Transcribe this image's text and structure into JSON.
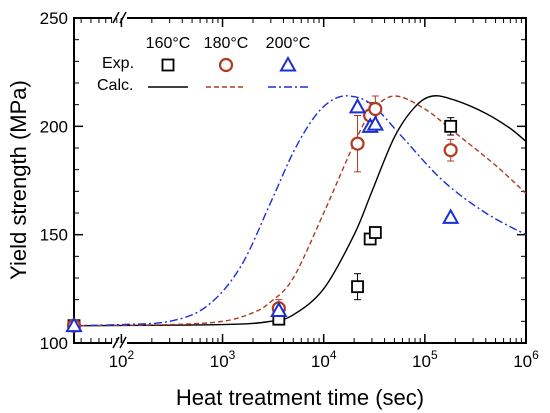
{
  "chart_data": {
    "type": "scatter",
    "xlabel": "Heat treatment time (sec)",
    "ylabel": "Yield strength (MPa)",
    "xscale": "log",
    "xlim": [
      34,
      1000000
    ],
    "ylim": [
      100,
      250
    ],
    "x_axis_break": true,
    "x_ticks": [
      {
        "value": 100,
        "base": "10",
        "exp": "2"
      },
      {
        "value": 1000,
        "base": "10",
        "exp": "3"
      },
      {
        "value": 10000,
        "base": "10",
        "exp": "4"
      },
      {
        "value": 100000,
        "base": "10",
        "exp": "5"
      },
      {
        "value": 1000000,
        "base": "10",
        "exp": "6"
      }
    ],
    "y_ticks": [
      {
        "value": 100,
        "label": "100"
      },
      {
        "value": 150,
        "label": "150"
      },
      {
        "value": 200,
        "label": "200"
      },
      {
        "value": 250,
        "label": "250"
      }
    ],
    "legend": {
      "placement": "top-left",
      "headers": [
        "160°C",
        "180°C",
        "200°C"
      ],
      "exp_label": "Exp.",
      "calc_label": "Calc."
    },
    "series": [
      {
        "name": "160°C",
        "color": "#000000",
        "marker": "square",
        "line_style": "solid",
        "exp": [
          {
            "x": 34,
            "y": 108
          },
          {
            "x": 3600,
            "y": 111,
            "err": 2
          },
          {
            "x": 21600,
            "y": 126,
            "err": 6
          },
          {
            "x": 28800,
            "y": 148
          },
          {
            "x": 32400,
            "y": 151
          },
          {
            "x": 180000,
            "y": 200,
            "err": 4
          }
        ],
        "calc": [
          [
            34,
            108
          ],
          [
            1000,
            108.5
          ],
          [
            3000,
            110
          ],
          [
            5000,
            113
          ],
          [
            10000,
            125
          ],
          [
            20000,
            150
          ],
          [
            30000,
            170
          ],
          [
            50000,
            195
          ],
          [
            80000,
            209
          ],
          [
            120000,
            214
          ],
          [
            200000,
            212
          ],
          [
            400000,
            206
          ],
          [
            700000,
            199
          ],
          [
            1000000,
            193
          ]
        ]
      },
      {
        "name": "180°C",
        "color": "#b03a22",
        "marker": "circle",
        "line_style": "dashed",
        "exp": [
          {
            "x": 34,
            "y": 108
          },
          {
            "x": 3600,
            "y": 116,
            "err": 4
          },
          {
            "x": 21600,
            "y": 192,
            "err": 13
          },
          {
            "x": 28800,
            "y": 205,
            "err": 6
          },
          {
            "x": 32400,
            "y": 208,
            "err": 6
          },
          {
            "x": 180000,
            "y": 189,
            "err": 5
          }
        ],
        "calc": [
          [
            34,
            108
          ],
          [
            300,
            108.5
          ],
          [
            1000,
            110
          ],
          [
            2000,
            114
          ],
          [
            3000,
            119
          ],
          [
            5000,
            130
          ],
          [
            10000,
            160
          ],
          [
            20000,
            192
          ],
          [
            30000,
            207
          ],
          [
            50000,
            214
          ],
          [
            100000,
            208
          ],
          [
            200000,
            197
          ],
          [
            500000,
            182
          ],
          [
            1000000,
            169
          ]
        ]
      },
      {
        "name": "200°C",
        "color": "#1a2fd6",
        "marker": "triangle",
        "line_style": "dashdot",
        "exp": [
          {
            "x": 34,
            "y": 108
          },
          {
            "x": 3600,
            "y": 115
          },
          {
            "x": 21600,
            "y": 209
          },
          {
            "x": 28800,
            "y": 200
          },
          {
            "x": 32400,
            "y": 201
          },
          {
            "x": 180000,
            "y": 158
          }
        ],
        "calc": [
          [
            34,
            108
          ],
          [
            100,
            108.5
          ],
          [
            300,
            110
          ],
          [
            700,
            117
          ],
          [
            1500,
            135
          ],
          [
            3000,
            165
          ],
          [
            5000,
            188
          ],
          [
            8000,
            204
          ],
          [
            12000,
            212
          ],
          [
            18000,
            214
          ],
          [
            30000,
            210
          ],
          [
            60000,
            195
          ],
          [
            150000,
            175
          ],
          [
            400000,
            160
          ],
          [
            1000000,
            150
          ]
        ]
      }
    ]
  }
}
